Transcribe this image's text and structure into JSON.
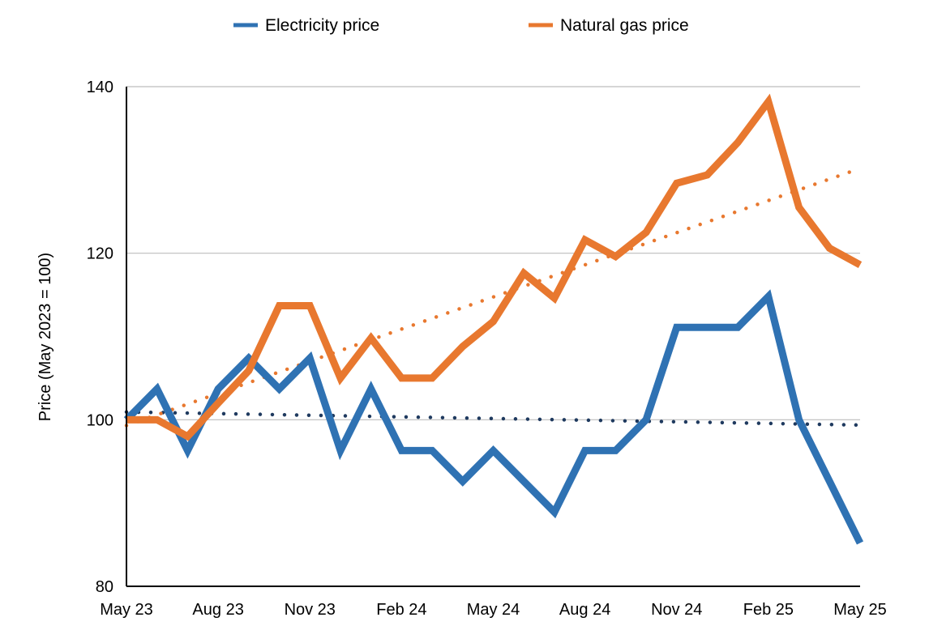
{
  "chart_data": {
    "type": "line",
    "title": "",
    "xlabel": "",
    "ylabel": "Price (May 2023 = 100)",
    "ylim": [
      80,
      140
    ],
    "yticks": [
      "80",
      "100",
      "120",
      "140"
    ],
    "grid": "horizontal",
    "legend_position": "top",
    "x": [
      "May 23",
      "Jun 23",
      "Jul 23",
      "Aug 23",
      "Sep 23",
      "Oct 23",
      "Nov 23",
      "Dec 23",
      "Jan 24",
      "Feb 24",
      "Mar 24",
      "Apr 24",
      "May 24",
      "Jun 24",
      "Jul 24",
      "Aug 24",
      "Sep 24",
      "Oct 24",
      "Nov 24",
      "Dec 24",
      "Jan 25",
      "Feb 25",
      "Mar 25",
      "Apr 25",
      "May 25"
    ],
    "xtick_labels": [
      "May 23",
      "Aug 23",
      "Nov 23",
      "Feb 24",
      "May 24",
      "Aug 24",
      "Nov 24",
      "Feb 25",
      "May 25"
    ],
    "series": [
      {
        "name": "Electricity price",
        "color": "#2f72b3",
        "trendline": "linear",
        "trend_color": "#1f3a5f",
        "values": [
          100,
          103.7,
          96.3,
          103.7,
          107.4,
          103.7,
          107.4,
          96.3,
          103.7,
          96.3,
          96.3,
          92.6,
          96.3,
          92.6,
          88.9,
          96.3,
          96.3,
          100,
          111.1,
          111.1,
          111.1,
          114.8,
          100,
          92.6,
          85.2
        ]
      },
      {
        "name": "Natural gas price",
        "color": "#e8782f",
        "trendline": "linear",
        "trend_color": "#e8782f",
        "values": [
          100,
          100,
          98,
          102,
          105.9,
          113.7,
          113.7,
          105,
          109.8,
          105,
          105,
          108.8,
          111.8,
          117.6,
          114.6,
          121.6,
          119.6,
          122.5,
          128.4,
          129.4,
          133.3,
          138.2,
          125.5,
          120.6,
          118.6
        ]
      }
    ]
  }
}
